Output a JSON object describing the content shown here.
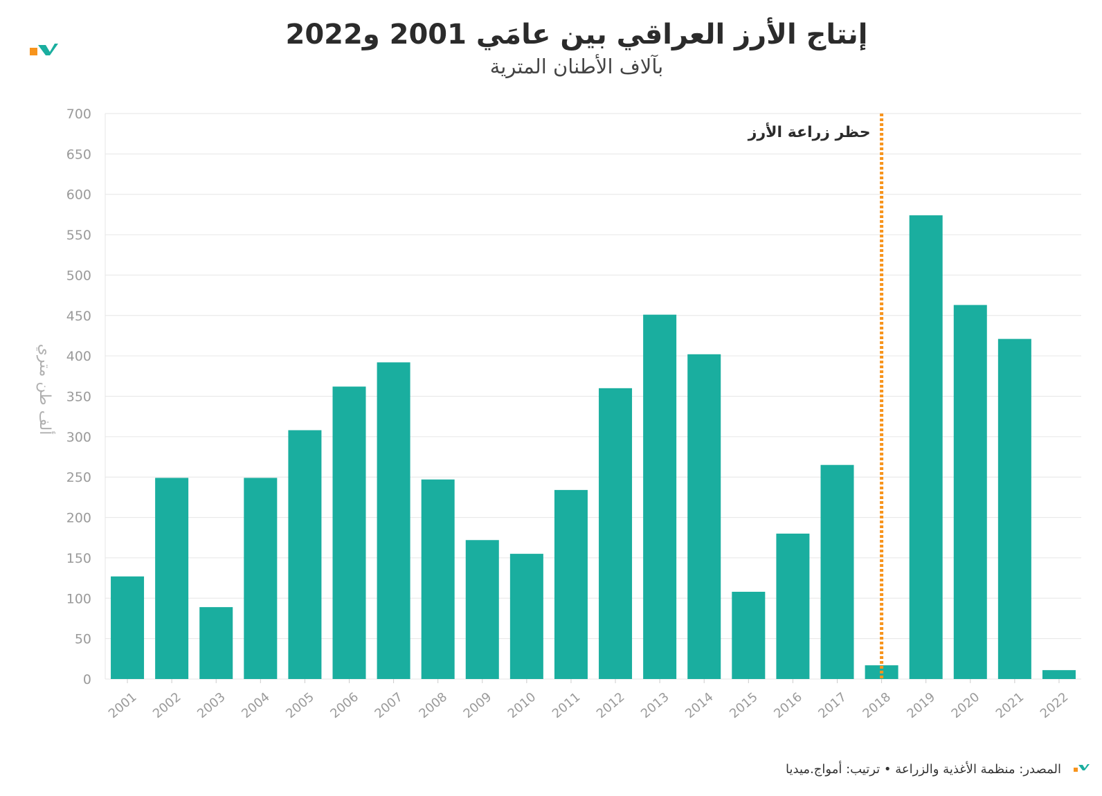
{
  "colors": {
    "bar": "#1aae9f",
    "annotation_line": "#f7941d",
    "logo_orange": "#f7941d",
    "logo_teal": "#1aae9f",
    "grid": "#e6e6e6"
  },
  "footer": {
    "text": "المصدر: منظمة الأغذية والزراعة • ترتيب: أمواج.ميديا"
  },
  "chart_data": {
    "type": "bar",
    "title": "إنتاج الأرز العراقي بين عامَي 2001 و2022",
    "subtitle": "بآلاف الأطنان المترية",
    "xlabel": "",
    "ylabel": "ألف طن متري",
    "ylim": [
      0,
      700
    ],
    "yticks": [
      0,
      50,
      100,
      150,
      200,
      250,
      300,
      350,
      400,
      450,
      500,
      550,
      600,
      650,
      700
    ],
    "grid": true,
    "categories": [
      "2001",
      "2002",
      "2003",
      "2004",
      "2005",
      "2006",
      "2007",
      "2008",
      "2009",
      "2010",
      "2011",
      "2012",
      "2013",
      "2014",
      "2015",
      "2016",
      "2017",
      "2018",
      "2019",
      "2020",
      "2021",
      "2022"
    ],
    "values": [
      127,
      249,
      89,
      249,
      308,
      362,
      392,
      247,
      172,
      155,
      234,
      360,
      451,
      402,
      108,
      180,
      265,
      17,
      574,
      463,
      421,
      11
    ],
    "annotations": [
      {
        "type": "vertical-line",
        "x": "2018",
        "label": "حظر زراعة الأرز"
      }
    ]
  }
}
